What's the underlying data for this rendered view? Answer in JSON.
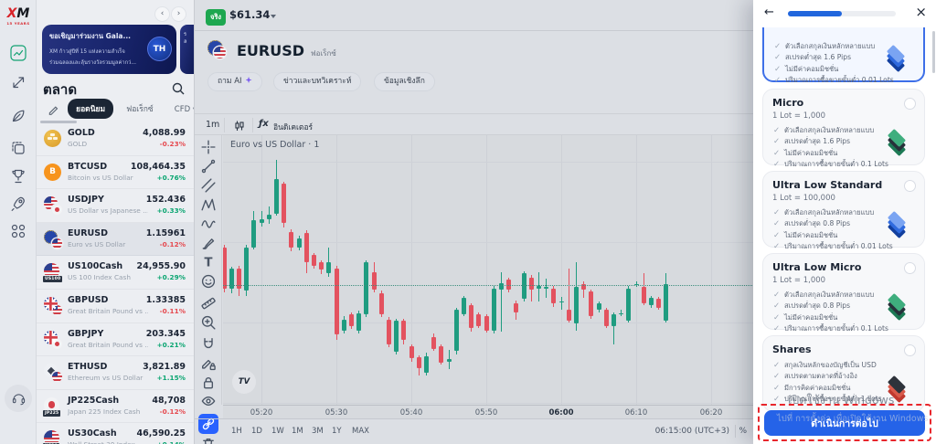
{
  "app": {
    "brand": "XM",
    "tagline": "15 YEARS"
  },
  "rail": {
    "items": [
      {
        "icon": "markets-icon",
        "active": true
      },
      {
        "icon": "transfer-arrows-icon",
        "active": false
      },
      {
        "icon": "quill-icon",
        "active": false
      },
      {
        "icon": "copy-pages-icon",
        "active": false
      },
      {
        "icon": "trophy-icon",
        "active": false
      },
      {
        "icon": "rocket-icon",
        "active": false
      },
      {
        "icon": "apps-grid-icon",
        "active": false
      }
    ],
    "support_icon": "headset-icon"
  },
  "watchlist": {
    "banner": {
      "title": "ขอเชิญมาร่วมงาน Gala...",
      "line2": "XM ก้าวสู่ปีที่ 15 แห่งความสำเร็จ",
      "line3": "ร่วมฉลองและลุ้นรางวัลรวมมูลค่ากว่...",
      "badge": "TH"
    },
    "title": "ตลาด",
    "tabs": [
      "ยอดนิยม",
      "ฟอเร็กซ์",
      "CFD ขอ"
    ],
    "active_tab": "ยอดนิยม",
    "items": [
      {
        "symbol": "GOLD",
        "desc": "GOLD",
        "price": "4,088.99",
        "change": "-0.23%",
        "dir": "down",
        "icon": "gold",
        "badge": ""
      },
      {
        "symbol": "BTCUSD",
        "desc": "Bitcoin vs US Dollar",
        "price": "108,464.35",
        "change": "+0.76%",
        "dir": "up",
        "icon": "btc",
        "badge": ""
      },
      {
        "symbol": "USDJPY",
        "desc": "US Dollar vs Japanese …",
        "price": "152.436",
        "change": "+0.33%",
        "dir": "up",
        "icon": "usdjpy",
        "badge": ""
      },
      {
        "symbol": "EURUSD",
        "desc": "Euro vs US Dollar",
        "price": "1.15961",
        "change": "-0.12%",
        "dir": "down",
        "icon": "eurusd",
        "badge": "",
        "selected": true
      },
      {
        "symbol": "US100Cash",
        "desc": "US 100 Index Cash",
        "price": "24,955.90",
        "change": "+0.29%",
        "dir": "up",
        "icon": "us100",
        "badge": "US100"
      },
      {
        "symbol": "GBPUSD",
        "desc": "Great Britain Pound vs …",
        "price": "1.33385",
        "change": "-0.11%",
        "dir": "down",
        "icon": "gbpusd",
        "badge": ""
      },
      {
        "symbol": "GBPJPY",
        "desc": "Great Britain Pound vs …",
        "price": "203.345",
        "change": "+0.21%",
        "dir": "up",
        "icon": "gbpjpy",
        "badge": ""
      },
      {
        "symbol": "ETHUSD",
        "desc": "Ethereum vs US Dollar",
        "price": "3,821.89",
        "change": "+1.15%",
        "dir": "up",
        "icon": "ethusd",
        "badge": ""
      },
      {
        "symbol": "JP225Cash",
        "desc": "Japan 225 Index Cash",
        "price": "48,708",
        "change": "-0.12%",
        "dir": "down",
        "icon": "jp225",
        "badge": "JP225"
      },
      {
        "symbol": "US30Cash",
        "desc": "Wall Street 30 Index …",
        "price": "46,590.25",
        "change": "+0.14%",
        "dir": "up",
        "icon": "us30",
        "badge": "US30"
      }
    ]
  },
  "topbar": {
    "account_badge": "จริง",
    "balance": "$61.34"
  },
  "chart": {
    "symbol": "EURUSD",
    "market_label": "ฟอเร็กซ์",
    "pills": [
      "ถาม AI",
      "ข่าวและบทวิเคราะห์",
      "ข้อมูลเชิงลึก"
    ],
    "toolbar": {
      "interval": "1m",
      "icons": [
        "candles-icon",
        "fx-indicator-icon"
      ],
      "indicators_label": "อินดิเคเตอร์",
      "fx_glyph": "ƒx"
    },
    "drawing_tools": [
      "crosshair",
      "trend-line",
      "parallel-lines",
      "pattern-xabcd",
      "elliott-wave",
      "brush",
      "text",
      "emoji",
      "ruler",
      "zoom-in",
      "magnet",
      "draw-lock",
      "lock",
      "eye",
      "link",
      "trash"
    ],
    "active_drawing_tool": "link",
    "tv_logo": "TV",
    "timeframes": [
      "1H",
      "1D",
      "1W",
      "1M",
      "3M",
      "1Y",
      "MAX"
    ],
    "clock": "06:15:00 (UTC+3)",
    "scale_toggle": "%"
  },
  "chart_data": {
    "type": "candlestick",
    "title": "Euro vs US Dollar · 1",
    "symbol": "EURUSD",
    "interval": "1m",
    "current_price": 1.15961,
    "ylim": [
      1.1585,
      1.161
    ],
    "colors": {
      "up": "#1f9c80",
      "down": "#e3525f",
      "current_line": "#3d8f7e"
    },
    "x_ticks": [
      {
        "label": "05:20"
      },
      {
        "label": "05:30"
      },
      {
        "label": "05:40"
      },
      {
        "label": "05:50"
      },
      {
        "label": "06:00",
        "bold": true
      },
      {
        "label": "06:10"
      },
      {
        "label": "06:20"
      }
    ],
    "candles": [
      [
        "05:15",
        1.15996,
        1.15998,
        1.15954,
        1.15958
      ],
      [
        "05:16",
        1.15958,
        1.15978,
        1.15953,
        1.15976
      ],
      [
        "05:17",
        1.15976,
        1.15979,
        1.15951,
        1.15958
      ],
      [
        "05:18",
        1.15956,
        1.15998,
        1.15951,
        1.15996
      ],
      [
        "05:19",
        1.15996,
        1.1603,
        1.15994,
        1.16021
      ],
      [
        "05:20",
        1.16019,
        1.1603,
        1.16015,
        1.16022
      ],
      [
        "05:21",
        1.16022,
        1.16034,
        1.16018,
        1.16026
      ],
      [
        "05:22",
        1.16027,
        1.16077,
        1.16025,
        1.16059
      ],
      [
        "05:23",
        1.16055,
        1.16057,
        1.16014,
        1.16019
      ],
      [
        "05:24",
        1.1601,
        1.16013,
        1.15992,
        1.15996
      ],
      [
        "05:25",
        1.15996,
        1.16007,
        1.15993,
        1.16004
      ],
      [
        "05:26",
        1.16009,
        1.16012,
        1.15972,
        1.15982
      ],
      [
        "05:27",
        1.15989,
        1.15991,
        1.15976,
        1.15979
      ],
      [
        "05:28",
        1.15982,
        1.15984,
        1.15971,
        1.15975
      ],
      [
        "05:29",
        1.15972,
        1.15996,
        1.15969,
        1.15982
      ],
      [
        "05:30",
        1.15976,
        1.15979,
        1.1591,
        1.15915
      ],
      [
        "05:31",
        1.15919,
        1.15932,
        1.15916,
        1.15929
      ],
      [
        "05:32",
        1.15934,
        1.15936,
        1.1592,
        1.15923
      ],
      [
        "05:33",
        1.15919,
        1.15937,
        1.15916,
        1.15935
      ],
      [
        "05:34",
        1.15934,
        1.15984,
        1.15931,
        1.15982
      ],
      [
        "05:35",
        1.15973,
        1.15982,
        1.15954,
        1.15957
      ],
      [
        "05:36",
        1.15953,
        1.15956,
        1.15931,
        1.15934
      ],
      [
        "05:37",
        1.15929,
        1.15931,
        1.15903,
        1.15906
      ],
      [
        "05:38",
        1.15899,
        1.1593,
        1.15897,
        1.15928
      ],
      [
        "05:39",
        1.15928,
        1.1593,
        1.15906,
        1.1591
      ],
      [
        "05:40",
        1.15904,
        1.15906,
        1.1589,
        1.15893
      ],
      [
        "05:41",
        1.15894,
        1.15896,
        1.15877,
        1.15884
      ],
      [
        "05:42",
        1.1588,
        1.15898,
        1.15877,
        1.15895
      ],
      [
        "05:43",
        1.15913,
        1.15916,
        1.159,
        1.15902
      ],
      [
        "05:44",
        1.15904,
        1.15906,
        1.15887,
        1.15889
      ],
      [
        "05:45",
        1.1589,
        1.15901,
        1.15883,
        1.15892
      ],
      [
        "05:46",
        1.159,
        1.1594,
        1.15897,
        1.15938
      ],
      [
        "05:47",
        1.15934,
        1.15951,
        1.15932,
        1.15949
      ],
      [
        "05:48",
        1.15942,
        1.15944,
        1.15918,
        1.15921
      ],
      [
        "05:49",
        1.15934,
        1.15936,
        1.15921,
        1.15923
      ],
      [
        "05:50",
        1.15932,
        1.15934,
        1.15917,
        1.15919
      ],
      [
        "05:51",
        1.15919,
        1.1596,
        1.15916,
        1.15958
      ],
      [
        "05:52",
        1.15957,
        1.15973,
        1.15918,
        1.15963
      ],
      [
        "05:53",
        1.15966,
        1.15968,
        1.15954,
        1.15957
      ],
      [
        "05:54",
        1.15944,
        1.15947,
        1.15929,
        1.15936
      ],
      [
        "05:55",
        1.15948,
        1.15974,
        1.15946,
        1.15972
      ],
      [
        "05:56",
        1.15968,
        1.1597,
        1.15946,
        1.15957
      ],
      [
        "05:57",
        1.15958,
        1.15973,
        1.15946,
        1.1596
      ],
      [
        "05:58",
        1.15958,
        1.15967,
        1.15949,
        1.15959
      ],
      [
        "05:59",
        1.15958,
        1.1596,
        1.15941,
        1.15944
      ],
      [
        "06:00",
        1.15945,
        1.1595,
        1.15938,
        1.15946
      ],
      [
        "06:01",
        1.15938,
        1.15976,
        1.15926,
        1.15928
      ],
      [
        "06:02",
        1.15925,
        1.15982,
        1.15919,
        1.15959
      ],
      [
        "06:03",
        1.15962,
        1.15964,
        1.15949,
        1.15957
      ],
      [
        "06:04",
        1.15955,
        1.15957,
        1.1593,
        1.15932
      ],
      [
        "06:05",
        1.15938,
        1.15946,
        1.15936,
        1.15944
      ],
      [
        "06:06",
        1.15938,
        1.1594,
        1.15921,
        1.15923
      ],
      [
        "06:07",
        1.15923,
        1.15936,
        1.15906,
        1.15934
      ],
      [
        "06:08",
        1.15935,
        1.15938,
        1.15932,
        1.15935
      ],
      [
        "06:09",
        1.15928,
        1.1596,
        1.15926,
        1.15958
      ],
      [
        "06:10",
        1.15961,
        1.15964,
        1.15959,
        1.15962
      ],
      [
        "06:11",
        1.15959,
        1.15972,
        1.15942,
        1.15944
      ],
      [
        "06:12",
        1.15942,
        1.15951,
        1.1594,
        1.15949
      ],
      [
        "06:13",
        1.15948,
        1.1595,
        1.15938,
        1.1594
      ],
      [
        "06:14",
        1.15928,
        1.15972,
        1.15926,
        1.15962
      ]
    ]
  },
  "panel": {
    "progress_pct": 50,
    "cards": [
      {
        "title": "",
        "lot": "",
        "icon": "blue",
        "selected": true,
        "partial": true,
        "features": [
          "ตัวเลือกสกุลเงินหลักหลายแบบ",
          "สเปรดต่ำสุด 1.6 Pips",
          "ไม่มีค่าคอมมิชชั่น",
          "ปริมาณการซื้อขายขั้นต่ำ 0.01 Lots"
        ]
      },
      {
        "title": "Micro",
        "lot": "1 Lot = 1,000",
        "icon": "green",
        "features": [
          "ตัวเลือกสกุลเงินหลักหลายแบบ",
          "สเปรดต่ำสุด 1.6 Pips",
          "ไม่มีค่าคอมมิชชั่น",
          "ปริมาณการซื้อขายขั้นต่ำ 0.1 Lots"
        ]
      },
      {
        "title": "Ultra Low Standard",
        "lot": "1 Lot = 100,000",
        "icon": "blue",
        "features": [
          "ตัวเลือกสกุลเงินหลักหลายแบบ",
          "สเปรดต่ำสุด 0.8 Pips",
          "ไม่มีค่าคอมมิชชั่น",
          "ปริมาณการซื้อขายขั้นต่ำ 0.01 Lots"
        ]
      },
      {
        "title": "Ultra Low Micro",
        "lot": "1 Lot = 1,000",
        "icon": "green",
        "features": [
          "ตัวเลือกสกุลเงินหลักหลายแบบ",
          "สเปรดต่ำสุด 0.8 Pips",
          "ไม่มีค่าคอมมิชชั่น",
          "ปริมาณการซื้อขายขั้นต่ำ 0.1 Lots"
        ]
      },
      {
        "title": "Shares",
        "lot": "",
        "icon": "red",
        "features": [
          "สกุลเงินหลักของบัญชีเป็น USD",
          "สเปรดตามตลาดที่อ้างอิง",
          "มีการคิดค่าคอมมิชชั่น",
          "ปริมาณการซื้อขายขั้นต่ำ 1 Lots"
        ]
      }
    ],
    "continue_label": "ดำเนินการต่อไป"
  },
  "watermark": {
    "line1": "เปิดใช้งาน Windows",
    "line2": "ไปที่ การตั้งค่า เพื่อเปิดใช้งาน Windows"
  }
}
